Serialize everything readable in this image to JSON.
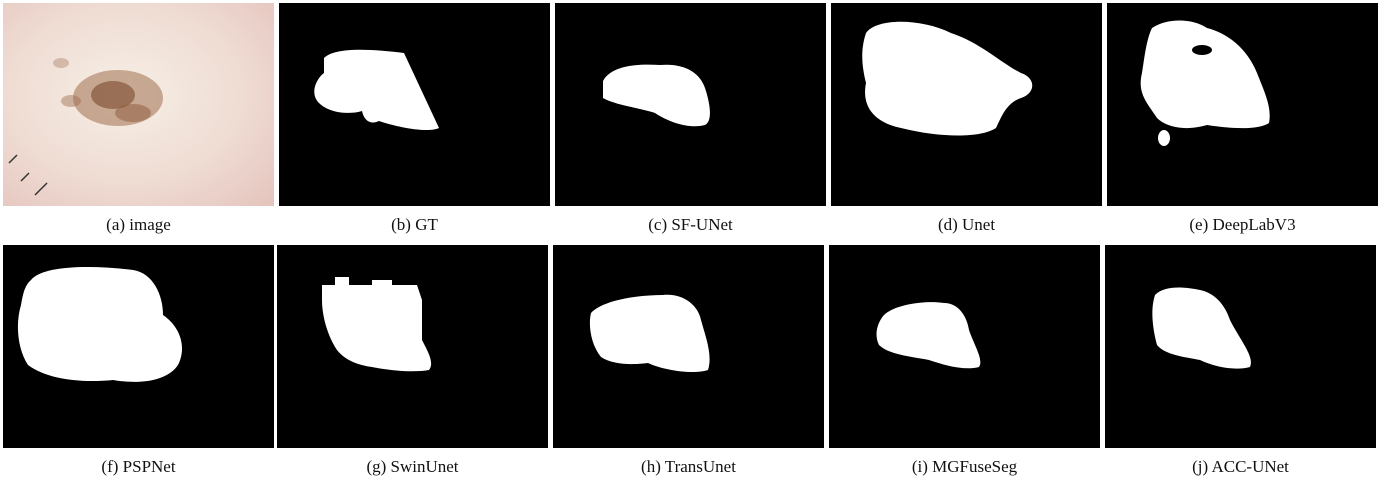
{
  "panels": [
    {
      "id": "a",
      "caption": "(a) image"
    },
    {
      "id": "b",
      "caption": "(b) GT"
    },
    {
      "id": "c",
      "caption": "(c) SF-UNet"
    },
    {
      "id": "d",
      "caption": "(d) Unet"
    },
    {
      "id": "e",
      "caption": "(e) DeepLabV3"
    },
    {
      "id": "f",
      "caption": "(f) PSPNet"
    },
    {
      "id": "g",
      "caption": "(g) SwinUnet"
    },
    {
      "id": "h",
      "caption": "(h) TransUnet"
    },
    {
      "id": "i",
      "caption": "(i) MGFuseSeg"
    },
    {
      "id": "j",
      "caption": "(j) ACC-UNet"
    }
  ],
  "colors": {
    "mask": "#ffffff",
    "background": "#000000",
    "lesion": "#8b5a3c"
  }
}
